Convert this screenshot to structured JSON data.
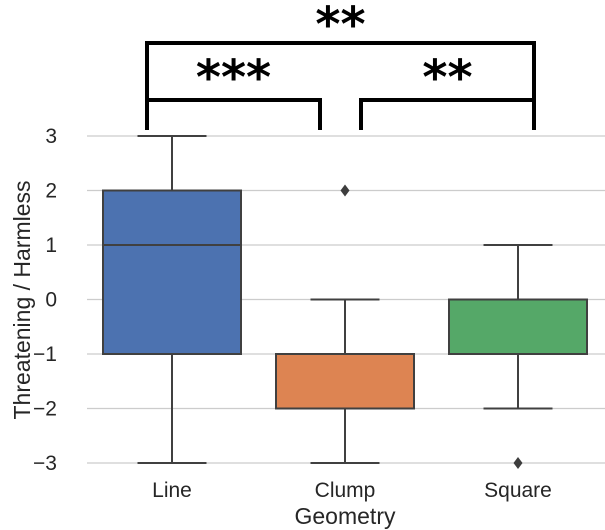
{
  "chart_data": {
    "type": "box",
    "title": "",
    "xlabel": "Geometry",
    "ylabel": "Threatening / Harmless",
    "ylim": [
      -3,
      3
    ],
    "yticks": [
      3,
      2,
      1,
      0,
      -1,
      -2,
      -3
    ],
    "ytick_labels": [
      "3",
      "2",
      "1",
      "0",
      "−1",
      "−2",
      "−3"
    ],
    "grid": true,
    "categories": [
      "Line",
      "Clump",
      "Square"
    ],
    "boxes": [
      {
        "category": "Line",
        "whisker_low": -3,
        "q1": -1,
        "median": 1,
        "q3": 2,
        "whisker_high": 3,
        "outliers": [],
        "color": "#4c72b0"
      },
      {
        "category": "Clump",
        "whisker_low": -3,
        "q1": -2,
        "median": -1,
        "q3": -1,
        "whisker_high": 0,
        "outliers": [
          2
        ],
        "color": "#dd8452"
      },
      {
        "category": "Square",
        "whisker_low": -2,
        "q1": -1,
        "median": 0,
        "q3": 0,
        "whisker_high": 1,
        "outliers": [
          -3
        ],
        "color": "#55a868"
      }
    ],
    "significance": [
      {
        "from": "Line",
        "to": "Clump",
        "label": "***"
      },
      {
        "from": "Clump",
        "to": "Square",
        "label": "**"
      },
      {
        "from": "Line",
        "to": "Square",
        "label": "**"
      }
    ]
  }
}
